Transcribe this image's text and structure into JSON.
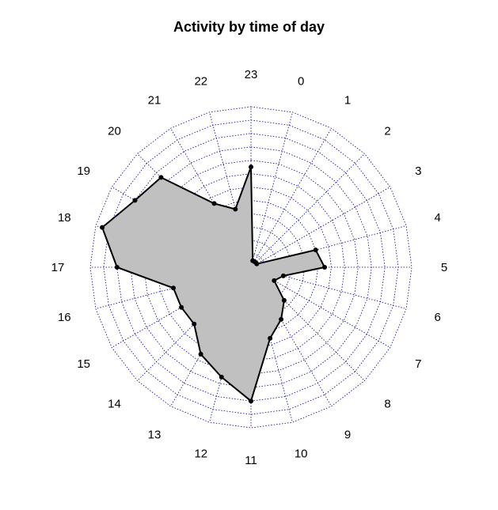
{
  "chart_data": {
    "type": "radar",
    "title": "Activity by time of day",
    "categories": [
      "23",
      "0",
      "1",
      "2",
      "3",
      "4",
      "5",
      "6",
      "7",
      "8",
      "9",
      "10",
      "11",
      "12",
      "13",
      "14",
      "15",
      "16",
      "17",
      "18",
      "19",
      "20",
      "21",
      "22"
    ],
    "values": [
      7.5,
      0.5,
      0.5,
      0.5,
      0.5,
      5.0,
      5.5,
      2.5,
      2.0,
      3.5,
      4.5,
      5.5,
      10.0,
      8.5,
      7.5,
      6.0,
      6.0,
      6.0,
      10.0,
      11.5,
      10.0,
      9.5,
      5.5,
      4.5
    ],
    "rlim": [
      0,
      12
    ],
    "ring_count": 12,
    "grid": true,
    "grid_color": "#00008B",
    "fill_color": "#C0C0C0",
    "line_color": "#000000"
  }
}
